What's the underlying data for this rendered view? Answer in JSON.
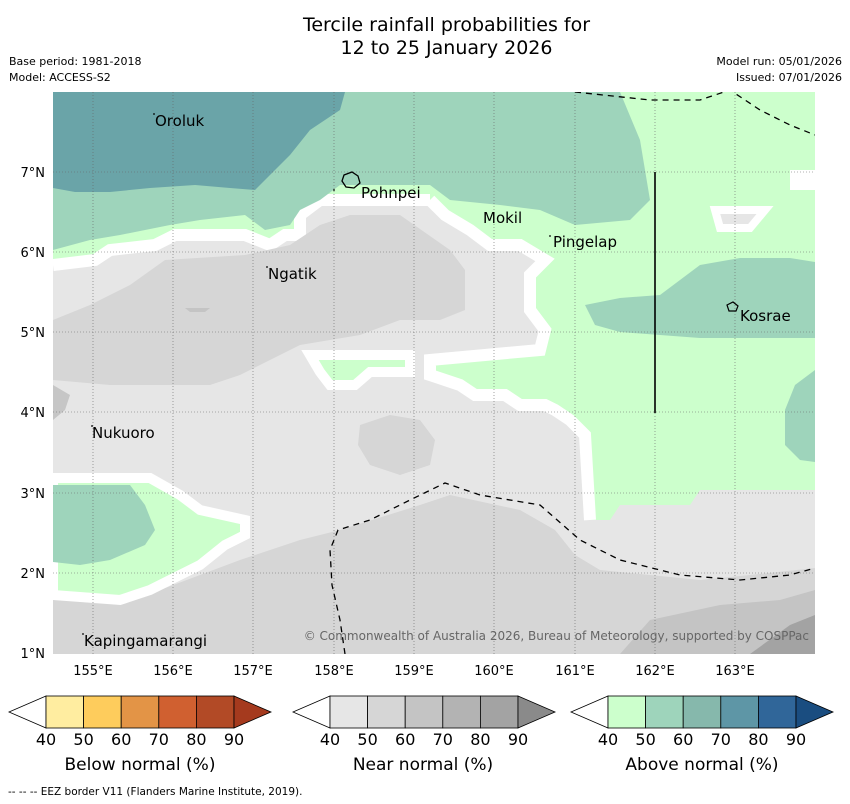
{
  "title": {
    "line1": "Tercile rainfall probabilities for",
    "line2": "12 to 25 January 2026"
  },
  "meta": {
    "base_period": "Base period: 1981-2018",
    "model": "Model: ACCESS-S2",
    "model_run": "Model run: 05/01/2026",
    "issued": "Issued: 07/01/2026"
  },
  "map": {
    "lat_labels": [
      "1°N",
      "2°N",
      "3°N",
      "4°N",
      "5°N",
      "6°N",
      "7°N"
    ],
    "lon_labels": [
      "155°E",
      "156°E",
      "157°E",
      "158°E",
      "159°E",
      "160°E",
      "161°E",
      "162°E",
      "163°E"
    ],
    "places": [
      "Oroluk",
      "Pohnpei",
      "Mokil",
      "Pingelap",
      "Ngatik",
      "Kosrae",
      "Nukuoro",
      "Kapingamarangi"
    ],
    "copyright": "© Commonwealth of Australia 2026, Bureau of Meteorology, supported by COSPPac"
  },
  "legends": [
    {
      "title": "Below normal (%)",
      "ticks": [
        "40",
        "50",
        "60",
        "70",
        "80",
        "90"
      ],
      "colors": [
        "#ffffff",
        "#ffeda0",
        "#fecc5c",
        "#e39446",
        "#d06030",
        "#b24a26",
        "#a53a1e"
      ]
    },
    {
      "title": "Near normal (%)",
      "ticks": [
        "40",
        "50",
        "60",
        "70",
        "80",
        "90"
      ],
      "colors": [
        "#ffffff",
        "#e6e6e6",
        "#d6d6d6",
        "#c4c4c4",
        "#b3b3b3",
        "#a3a3a3",
        "#8a8a8a"
      ]
    },
    {
      "title": "Above normal (%)",
      "ticks": [
        "40",
        "50",
        "60",
        "70",
        "80",
        "90"
      ],
      "colors": [
        "#ffffff",
        "#ccffcc",
        "#9ed4bb",
        "#86b8ac",
        "#5e96a6",
        "#306699",
        "#1a4d80"
      ]
    }
  ],
  "footnote": "--  --  -- EEZ border V11 (Flanders Marine Institute, 2019)."
}
